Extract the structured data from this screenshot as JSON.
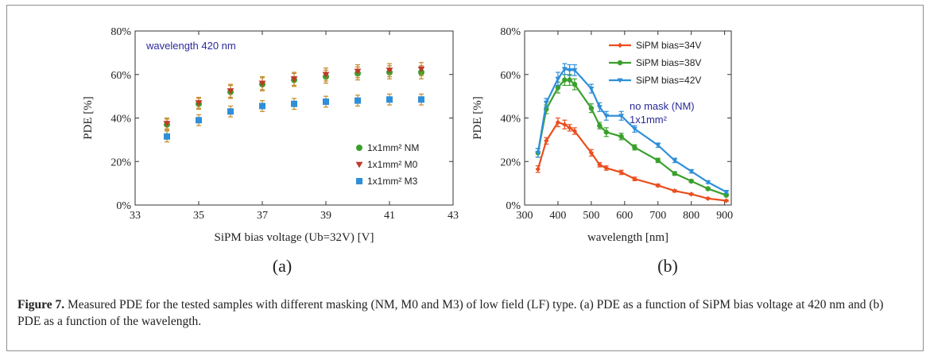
{
  "chart_data": [
    {
      "type": "scatter",
      "id": "a",
      "xlabel": "SiPM bias voltage (Ub=32V) [V]",
      "ylabel": "PDE [%]",
      "xlim": [
        33,
        43
      ],
      "ylim": [
        0,
        80
      ],
      "x_ticks": [
        33,
        35,
        37,
        39,
        41,
        43
      ],
      "y_ticks": [
        "0%",
        "20%",
        "40%",
        "60%",
        "80%"
      ],
      "y_tick_values": [
        0,
        20,
        40,
        60,
        80
      ],
      "annotation": "wavelength 420 nm",
      "legend_position": "bottom-right",
      "panel_label": "(a)",
      "series": [
        {
          "name": "1x1mm² NM",
          "marker": "circle",
          "color": "#3aa02c",
          "x": [
            34,
            35,
            36,
            37,
            38,
            39,
            40,
            41,
            42
          ],
          "y": [
            37,
            46.5,
            52,
            55.5,
            57.5,
            59,
            60.5,
            61,
            61
          ],
          "err": [
            2.5,
            2.5,
            3,
            3,
            3,
            3,
            3,
            3,
            3
          ]
        },
        {
          "name": "1x1mm² M0",
          "marker": "triangle-down",
          "color": "#c0392b",
          "x": [
            34,
            35,
            36,
            37,
            38,
            39,
            40,
            41,
            42
          ],
          "y": [
            37.5,
            47,
            52.5,
            56,
            58,
            60,
            61.5,
            62,
            62.5
          ],
          "err": [
            2.5,
            2.5,
            3,
            3,
            3,
            3,
            3,
            3,
            3
          ]
        },
        {
          "name": "1x1mm² M3",
          "marker": "square",
          "color": "#2f8fd8",
          "x": [
            34,
            35,
            36,
            37,
            38,
            39,
            40,
            41,
            42
          ],
          "y": [
            31.5,
            39,
            43,
            45.5,
            46.5,
            47.5,
            48,
            48.5,
            48.5
          ],
          "err": [
            2.5,
            2.5,
            2.5,
            2.5,
            2.5,
            2.5,
            2.5,
            2.5,
            2.5
          ]
        }
      ]
    },
    {
      "type": "line",
      "id": "b",
      "xlabel": "wavelength [nm]",
      "ylabel": "PDE [%]",
      "xlim": [
        300,
        920
      ],
      "ylim": [
        0,
        80
      ],
      "x_ticks": [
        300,
        400,
        500,
        600,
        700,
        800,
        900
      ],
      "y_ticks": [
        "0%",
        "20%",
        "40%",
        "60%",
        "80%"
      ],
      "y_tick_values": [
        0,
        20,
        40,
        60,
        80
      ],
      "annotation": [
        "no mask (NM)",
        "1x1mm²"
      ],
      "legend_position": "top-right",
      "panel_label": "(b)",
      "x": [
        340,
        365,
        400,
        420,
        435,
        450,
        500,
        525,
        545,
        590,
        630,
        700,
        750,
        800,
        850,
        905
      ],
      "series": [
        {
          "name": "SiPM bias=34V",
          "marker": "diamond",
          "color": "#ea4e1e",
          "y": [
            16.5,
            29.5,
            38,
            37,
            35.5,
            34,
            24,
            18.5,
            17,
            15,
            12,
            9,
            6.5,
            5,
            3,
            2
          ],
          "err": [
            1.5,
            1.5,
            2,
            2,
            1.5,
            1.5,
            1.5,
            1,
            1,
            1,
            0.8,
            0.6,
            0.5,
            0.4,
            0.3,
            0.3
          ]
        },
        {
          "name": "SiPM bias=38V",
          "marker": "circle",
          "color": "#3aa02c",
          "y": [
            24,
            44,
            54,
            57.5,
            57.5,
            55.5,
            44.5,
            36.5,
            33.5,
            31.5,
            26.5,
            20.5,
            14.5,
            11,
            7.5,
            4.5
          ],
          "err": [
            2,
            2,
            2.5,
            2.5,
            2.5,
            2.5,
            2,
            1.5,
            2,
            1.5,
            1.2,
            1,
            0.8,
            0.6,
            0.5,
            0.4
          ]
        },
        {
          "name": "SiPM bias=42V",
          "marker": "triangle-down",
          "color": "#2f8fd8",
          "y": [
            24,
            47,
            58,
            62.5,
            62,
            62,
            53.5,
            45,
            41,
            41,
            35,
            27.5,
            20.5,
            15.5,
            10.5,
            6
          ],
          "err": [
            2,
            2,
            3,
            2.5,
            2.5,
            2.5,
            2,
            2,
            2,
            2,
            1.5,
            1,
            1,
            0.8,
            0.6,
            0.5
          ]
        }
      ]
    }
  ],
  "caption": {
    "label": "Figure 7.",
    "text": " Measured PDE for the tested samples with different masking (NM, M0 and M3) of low field (LF) type. (a) PDE as a function of SiPM bias voltage at 420 nm and (b) PDE as a function of the wavelength."
  }
}
